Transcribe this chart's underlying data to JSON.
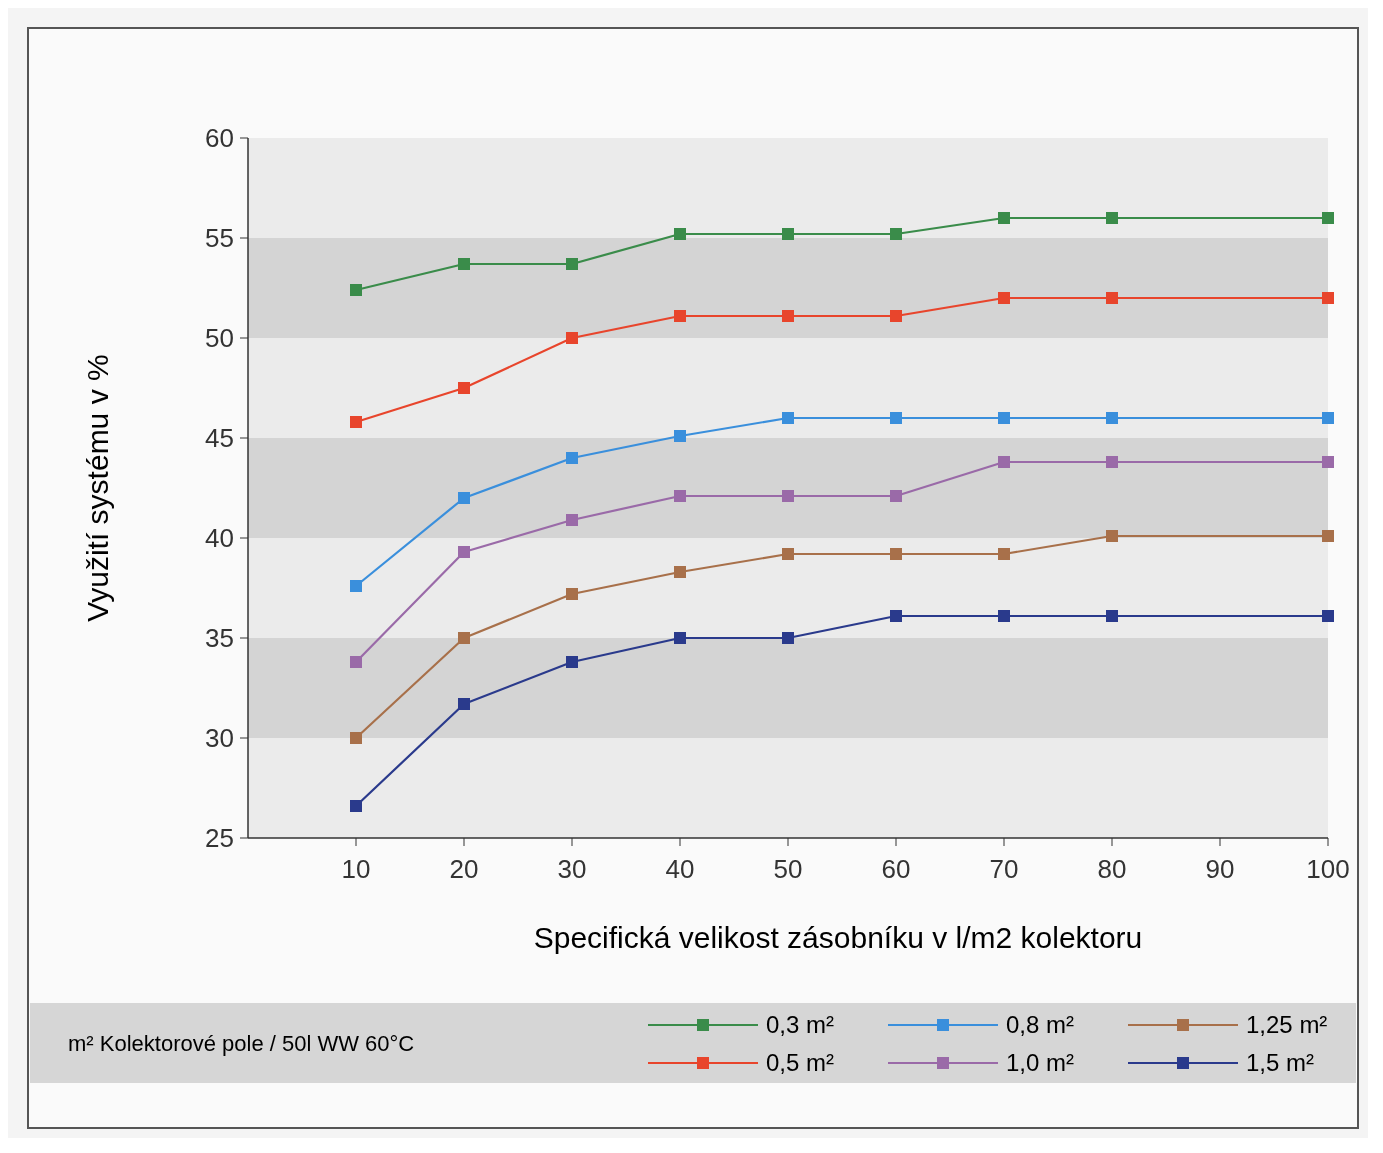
{
  "chart_data": {
    "type": "line",
    "xlabel": "Specifická velikost zásobníku v l/m2 kolektoru",
    "ylabel": "Využití systému v %",
    "legend_title": "m² Kolektorové pole / 50l WW 60°C",
    "x": [
      10,
      20,
      30,
      40,
      50,
      60,
      70,
      80,
      100
    ],
    "xlim": [
      0,
      100
    ],
    "xticks": [
      10,
      20,
      30,
      40,
      50,
      60,
      70,
      80,
      90,
      100
    ],
    "ylim": [
      25,
      60
    ],
    "yticks": [
      25,
      30,
      35,
      40,
      45,
      50,
      55,
      60
    ],
    "grid": false,
    "legend": "bottom",
    "marker": "square",
    "line_style": "solid",
    "bands": [
      {
        "axis": "y",
        "from": 30,
        "to": 35,
        "color": "#d4d4d4"
      },
      {
        "axis": "y",
        "from": 40,
        "to": 45,
        "color": "#d4d4d4"
      },
      {
        "axis": "y",
        "from": 50,
        "to": 55,
        "color": "#d4d4d4"
      }
    ],
    "series": [
      {
        "name": "0,3 m²",
        "color": "#3a8c4a",
        "values": [
          52.4,
          53.7,
          53.7,
          55.2,
          55.2,
          55.2,
          56,
          56,
          56
        ]
      },
      {
        "name": "0,5 m²",
        "color": "#e8452c",
        "values": [
          45.8,
          47.5,
          50,
          51.1,
          51.1,
          51.1,
          52,
          52,
          52
        ]
      },
      {
        "name": "0,8 m²",
        "color": "#3a8fdc",
        "values": [
          37.6,
          42,
          44,
          45.1,
          46,
          46,
          46,
          46,
          46
        ]
      },
      {
        "name": "1,0 m²",
        "color": "#9a6aa8",
        "values": [
          33.8,
          39.3,
          40.9,
          42.1,
          42.1,
          42.1,
          43.8,
          43.8,
          43.8
        ]
      },
      {
        "name": "1,25 m²",
        "color": "#a8704a",
        "values": [
          30,
          35,
          37.2,
          38.3,
          39.2,
          39.2,
          39.2,
          40.1,
          40.1
        ]
      },
      {
        "name": "1,5 m²",
        "color": "#2a3a8c",
        "values": [
          26.6,
          31.7,
          33.8,
          35,
          35,
          36.1,
          36.1,
          36.1,
          36.1
        ]
      }
    ]
  }
}
